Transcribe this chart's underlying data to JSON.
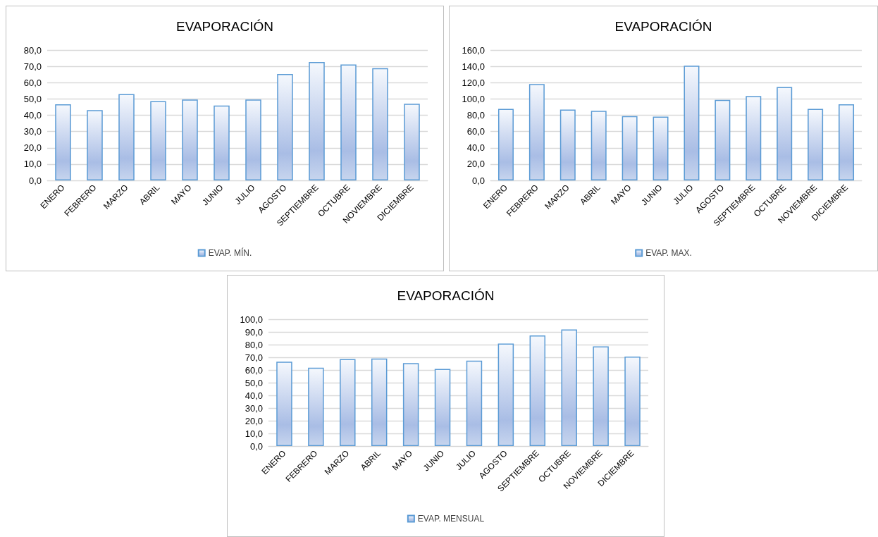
{
  "chart_data": [
    {
      "type": "bar",
      "title": "EVAPORACIÓN",
      "categories": [
        "ENERO",
        "FEBRERO",
        "MARZO",
        "ABRIL",
        "MAYO",
        "JUNIO",
        "JULIO",
        "AGOSTO",
        "SEPTIEMBRE",
        "OCTUBRE",
        "NOVIEMBRE",
        "DICIEMBRE"
      ],
      "series": [
        {
          "name": "EVAP. MÍN.",
          "color": "#5b9bd5",
          "values": [
            46.7,
            43.1,
            53.0,
            48.7,
            49.6,
            46.0,
            49.6,
            65.3,
            72.6,
            71.1,
            68.9,
            47.0
          ]
        }
      ],
      "ylim": [
        0,
        80
      ],
      "yticks": [
        {
          "value": 0,
          "label": "0,0"
        },
        {
          "value": 10,
          "label": "10,0"
        },
        {
          "value": 20,
          "label": "20,0"
        },
        {
          "value": 30,
          "label": "30,0"
        },
        {
          "value": 40,
          "label": "40,0"
        },
        {
          "value": 50,
          "label": "50,0"
        },
        {
          "value": 60,
          "label": "60,0"
        },
        {
          "value": 70,
          "label": "70,0"
        },
        {
          "value": 80,
          "label": "80,0"
        }
      ],
      "grid": "y",
      "legend": "bottom"
    },
    {
      "type": "bar",
      "title": "EVAPORACIÓN",
      "categories": [
        "ENERO",
        "FEBRERO",
        "MARZO",
        "ABRIL",
        "MAYO",
        "JUNIO",
        "JULIO",
        "AGOSTO",
        "SEPTIEMBRE",
        "OCTUBRE",
        "NOVIEMBRE",
        "DICIEMBRE"
      ],
      "series": [
        {
          "name": "EVAP. MAX.",
          "color": "#5b9bd5",
          "values": [
            87.7,
            118.3,
            87.0,
            85.4,
            79.0,
            78.3,
            140.8,
            98.8,
            103.5,
            114.6,
            87.7,
            93.4
          ]
        }
      ],
      "ylim": [
        0,
        160
      ],
      "yticks": [
        {
          "value": 0,
          "label": "0,0"
        },
        {
          "value": 20,
          "label": "20,0"
        },
        {
          "value": 40,
          "label": "40,0"
        },
        {
          "value": 60,
          "label": "60,0"
        },
        {
          "value": 80,
          "label": "80,0"
        },
        {
          "value": 100,
          "label": "100,0"
        },
        {
          "value": 120,
          "label": "120,0"
        },
        {
          "value": 140,
          "label": "140,0"
        },
        {
          "value": 160,
          "label": "160,0"
        }
      ],
      "grid": "y",
      "legend": "bottom"
    },
    {
      "type": "bar",
      "title": "EVAPORACIÓN",
      "categories": [
        "ENERO",
        "FEBRERO",
        "MARZO",
        "ABRIL",
        "MAYO",
        "JUNIO",
        "JULIO",
        "AGOSTO",
        "SEPTIEMBRE",
        "OCTUBRE",
        "NOVIEMBRE",
        "DICIEMBRE"
      ],
      "series": [
        {
          "name": "EVAP. MENSUAL",
          "color": "#5b9bd5",
          "values": [
            66.5,
            61.8,
            68.6,
            69.0,
            65.4,
            60.9,
            67.3,
            80.8,
            87.2,
            91.9,
            78.6,
            70.5
          ]
        }
      ],
      "ylim": [
        0,
        100
      ],
      "yticks": [
        {
          "value": 0,
          "label": "0,0"
        },
        {
          "value": 10,
          "label": "10,0"
        },
        {
          "value": 20,
          "label": "20,0"
        },
        {
          "value": 30,
          "label": "30,0"
        },
        {
          "value": 40,
          "label": "40,0"
        },
        {
          "value": 50,
          "label": "50,0"
        },
        {
          "value": 60,
          "label": "60,0"
        },
        {
          "value": 70,
          "label": "70,0"
        },
        {
          "value": 80,
          "label": "80,0"
        },
        {
          "value": 90,
          "label": "90,0"
        },
        {
          "value": 100,
          "label": "100,0"
        }
      ],
      "grid": "y",
      "legend": "bottom"
    }
  ]
}
